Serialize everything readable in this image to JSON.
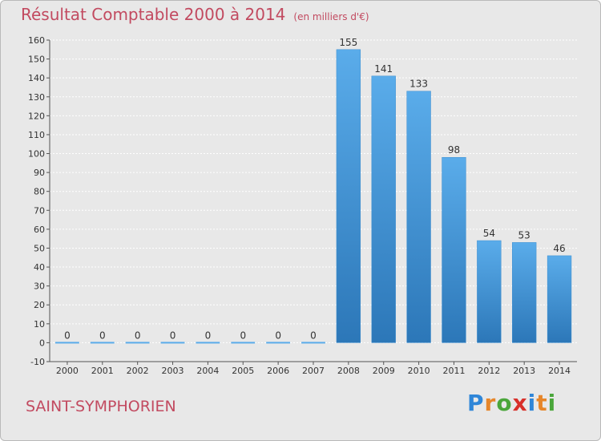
{
  "header": {
    "title": "Résultat Comptable 2000 à 2014",
    "unit": "(en milliers d'€)"
  },
  "footer": {
    "commune": "SAINT-SYMPHORIEN",
    "logo": [
      "P",
      "r",
      "o",
      "x",
      "i",
      "t",
      "i"
    ]
  },
  "colors": {
    "bar_top": "#5aacea",
    "bar_bottom": "#2c77b8",
    "title": "#c24a60",
    "logo": [
      "#2f86d8",
      "#e6862a",
      "#4aa63a",
      "#d8302a",
      "#2f86d8",
      "#e6862a",
      "#4aa63a"
    ]
  },
  "chart_data": {
    "type": "bar",
    "categories": [
      "2000",
      "2001",
      "2002",
      "2003",
      "2004",
      "2005",
      "2006",
      "2007",
      "2008",
      "2009",
      "2010",
      "2011",
      "2012",
      "2013",
      "2014"
    ],
    "values": [
      0,
      0,
      0,
      0,
      0,
      0,
      0,
      0,
      155,
      141,
      133,
      98,
      54,
      53,
      46
    ],
    "title": "Résultat Comptable 2000 à 2014",
    "ylabel": "",
    "xlabel": "",
    "ylim": [
      -10,
      160
    ],
    "yticks": [
      -10,
      0,
      10,
      20,
      30,
      40,
      50,
      60,
      70,
      80,
      90,
      100,
      110,
      120,
      130,
      140,
      150,
      160
    ],
    "grid": true,
    "legend": "none"
  }
}
